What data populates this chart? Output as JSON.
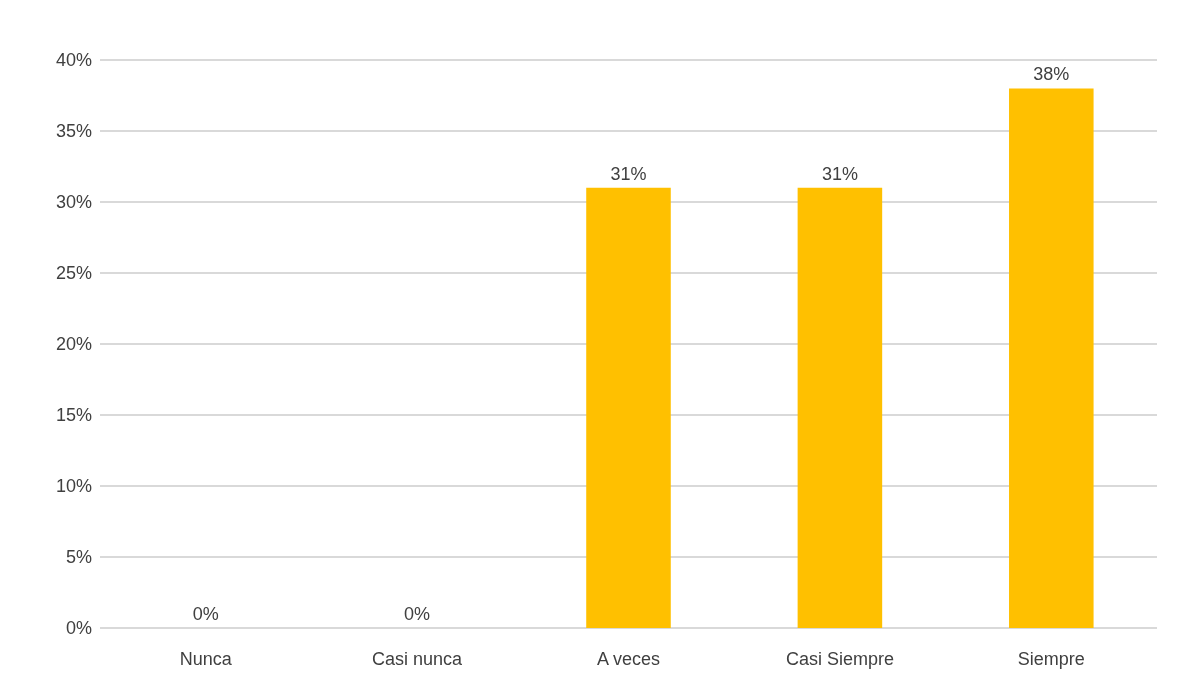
{
  "chart_data": {
    "type": "bar",
    "categories": [
      "Nunca",
      "Casi nunca",
      "A veces",
      "Casi Siempre",
      "Siempre"
    ],
    "values": [
      0,
      0,
      31,
      31,
      38
    ],
    "color": "#ffc000",
    "value_labels": [
      "0%",
      "0%",
      "31%",
      "31%",
      "38%"
    ],
    "ylim": [
      0,
      40
    ],
    "yticks": [
      {
        "value": 0,
        "label": "0%"
      },
      {
        "value": 5,
        "label": "5%"
      },
      {
        "value": 10,
        "label": "10%"
      },
      {
        "value": 15,
        "label": "15%"
      },
      {
        "value": 20,
        "label": "20%"
      },
      {
        "value": 25,
        "label": "25%"
      },
      {
        "value": 30,
        "label": "30%"
      },
      {
        "value": 35,
        "label": "35%"
      },
      {
        "value": 40,
        "label": "40%"
      }
    ],
    "grid": true
  }
}
